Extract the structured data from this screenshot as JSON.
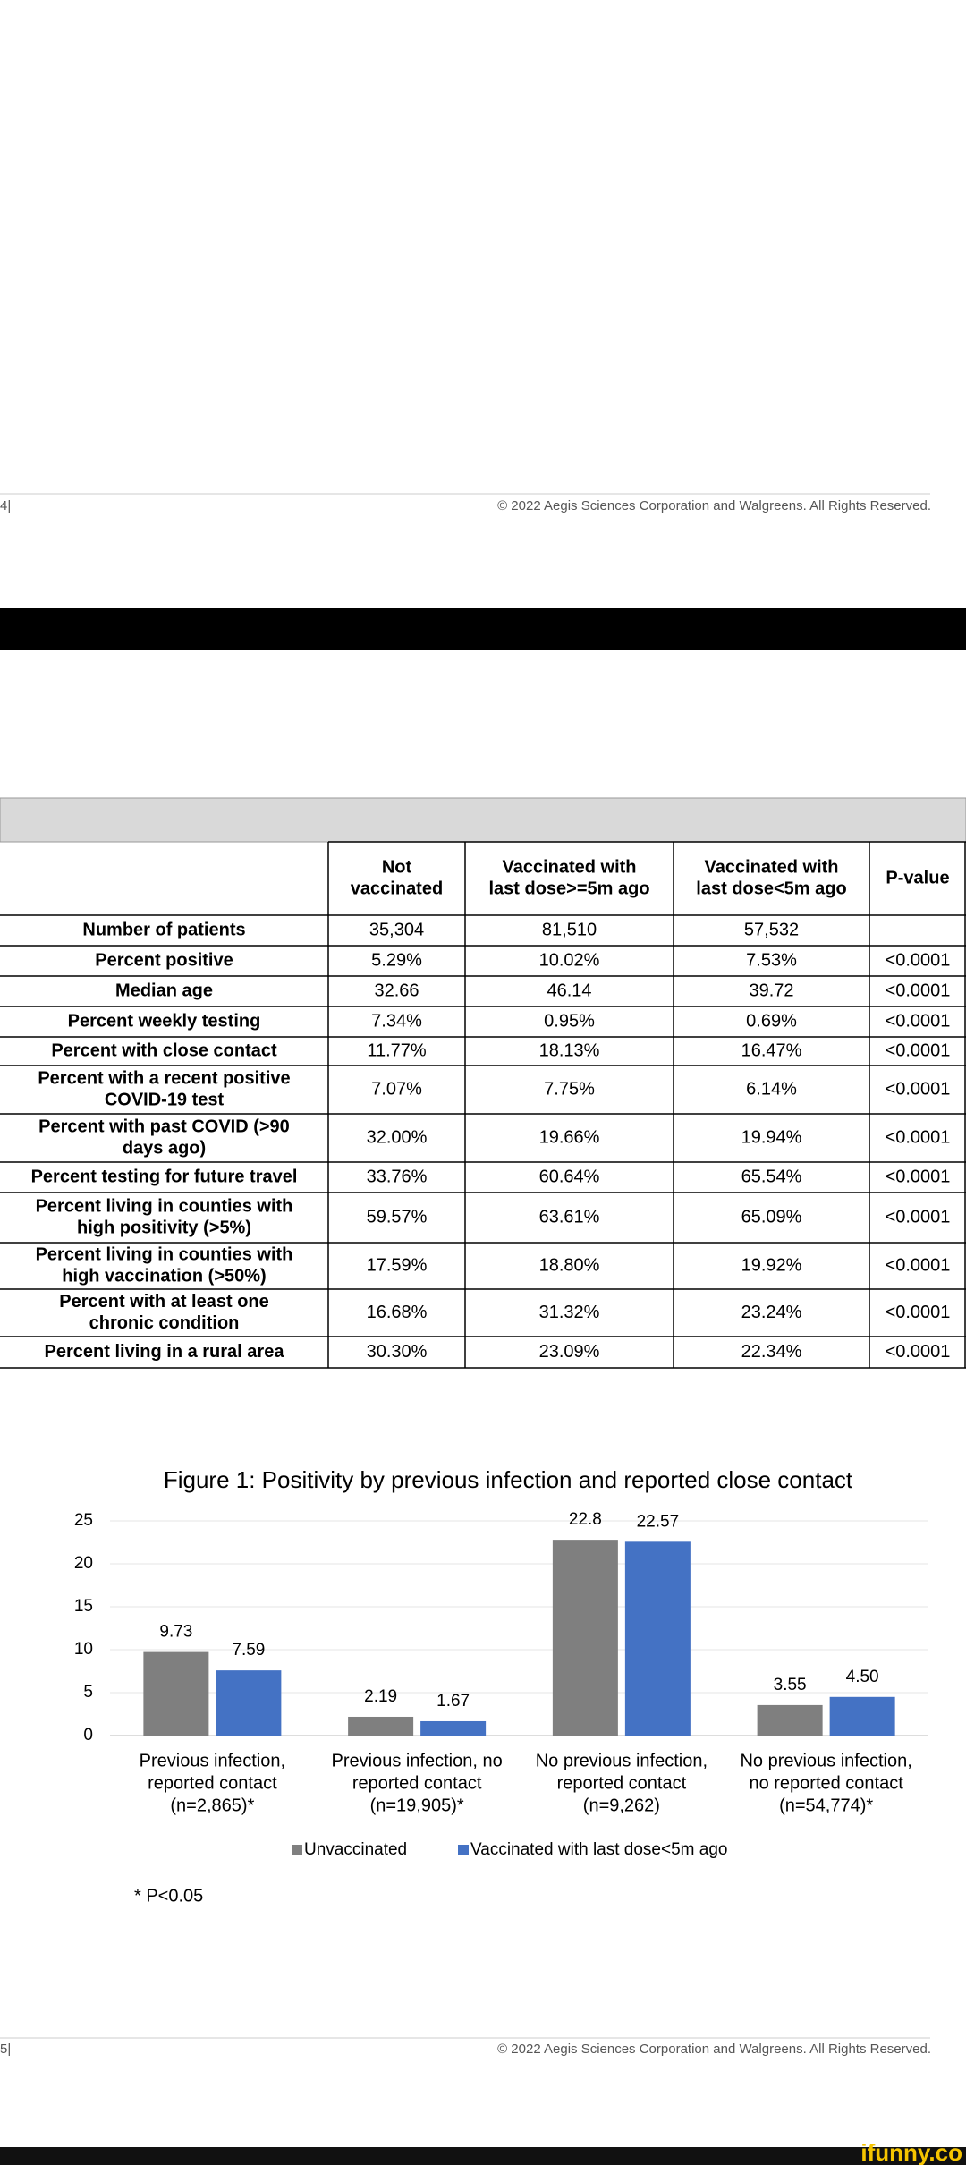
{
  "page_top": {
    "page_number": "4|",
    "copyright": "© 2022 Aegis Sciences Corporation and Walgreens. All Rights Reserved."
  },
  "table": {
    "columns": [
      [
        "Not",
        "vaccinated"
      ],
      [
        "Vaccinated with",
        "last dose>=5m ago"
      ],
      [
        "Vaccinated with",
        "last dose<5m ago"
      ],
      [
        "P-value"
      ]
    ],
    "rows": [
      {
        "label": [
          "Number of patients"
        ],
        "cells": [
          "35,304",
          "81,510",
          "57,532"
        ]
      },
      {
        "label": [
          "Percent positive"
        ],
        "cells": [
          "5.29%",
          "10.02%",
          "7.53%",
          "<0.0001"
        ]
      },
      {
        "label": [
          "Median age"
        ],
        "cells": [
          "32.66",
          "46.14",
          "39.72",
          "<0.0001"
        ]
      },
      {
        "label": [
          "Percent weekly testing"
        ],
        "cells": [
          "7.34%",
          "0.95%",
          "0.69%",
          "<0.0001"
        ]
      },
      {
        "label": [
          "Percent with close contact"
        ],
        "cells": [
          "11.77%",
          "18.13%",
          "16.47%",
          "<0.0001"
        ]
      },
      {
        "label": [
          "Percent with a recent positive",
          "COVID-19 test"
        ],
        "cells": [
          "7.07%",
          "7.75%",
          "6.14%",
          "<0.0001"
        ]
      },
      {
        "label": [
          "Percent with past COVID (>90",
          "days ago)"
        ],
        "cells": [
          "32.00%",
          "19.66%",
          "19.94%",
          "<0.0001"
        ]
      },
      {
        "label": [
          "Percent testing for future travel"
        ],
        "cells": [
          "33.76%",
          "60.64%",
          "65.54%",
          "<0.0001"
        ]
      },
      {
        "label": [
          "Percent living in counties with",
          "high positivity (>5%)"
        ],
        "cells": [
          "59.57%",
          "63.61%",
          "65.09%",
          "<0.0001"
        ]
      },
      {
        "label": [
          "Percent living in counties with",
          "high vaccination (>50%)"
        ],
        "cells": [
          "17.59%",
          "18.80%",
          "19.92%",
          "<0.0001"
        ]
      },
      {
        "label": [
          "Percent with at least one",
          "chronic condition"
        ],
        "cells": [
          "16.68%",
          "31.32%",
          "23.24%",
          "<0.0001"
        ]
      },
      {
        "label": [
          "Percent living in a rural area"
        ],
        "cells": [
          "30.30%",
          "23.09%",
          "22.34%",
          "<0.0001"
        ]
      }
    ]
  },
  "chart_data": {
    "type": "bar",
    "title": "Figure 1: Positivity by previous infection and reported close contact",
    "categories": [
      [
        "Previous infection,",
        "reported contact",
        "(n=2,865)*"
      ],
      [
        "Previous infection, no",
        "reported contact",
        "(n=19,905)*"
      ],
      [
        "No previous infection,",
        "reported contact",
        "(n=9,262)"
      ],
      [
        "No previous infection,",
        "no reported contact",
        "(n=54,774)*"
      ]
    ],
    "series": [
      {
        "name": "Unvaccinated",
        "color": "#7f7f7f",
        "values": [
          9.73,
          2.19,
          22.8,
          3.55
        ],
        "value_labels": [
          "9.73",
          "2.19",
          "22.8",
          "3.55"
        ]
      },
      {
        "name": "Vaccinated with last dose<5m ago",
        "color": "#4472c4",
        "values": [
          7.59,
          1.67,
          22.57,
          4.5
        ],
        "value_labels": [
          "7.59",
          "1.67",
          "22.57",
          "4.50"
        ]
      }
    ],
    "ylim": [
      0,
      25
    ],
    "yticks": [
      0,
      5,
      10,
      15,
      20,
      25
    ],
    "grid": true,
    "note": "* P<0.05"
  },
  "page_bottom": {
    "page_number": "5|",
    "copyright": "© 2022 Aegis Sciences Corporation and Walgreens. All Rights Reserved."
  },
  "watermark": "ifunny.co"
}
